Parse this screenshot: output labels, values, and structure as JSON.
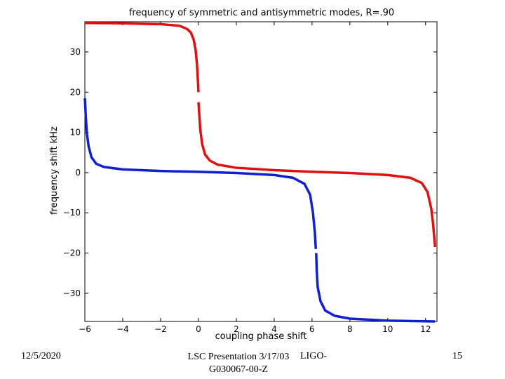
{
  "chart_data": {
    "type": "line",
    "title": "frequency of symmetric and antisymmetric modes, R=.90",
    "xlabel": "coupling phase shift",
    "ylabel": "frequency shift kHz",
    "xlim": [
      -6,
      12.6
    ],
    "ylim": [
      -37,
      37.5
    ],
    "xticks": [
      -6,
      -4,
      -2,
      0,
      2,
      4,
      6,
      8,
      10,
      12
    ],
    "yticks": [
      30,
      20,
      10,
      0,
      -10,
      -20,
      -30
    ],
    "grid": false,
    "series": [
      {
        "color": "#e01010",
        "segments": [
          [
            [
              -6.0,
              37.2
            ],
            [
              -4.0,
              37.1
            ],
            [
              -2.0,
              36.9
            ],
            [
              -1.0,
              36.5
            ],
            [
              -0.6,
              35.7
            ],
            [
              -0.4,
              34.8
            ],
            [
              -0.25,
              33.0
            ],
            [
              -0.15,
              30.5
            ],
            [
              -0.08,
              27.0
            ],
            [
              -0.03,
              23.0
            ],
            [
              0.0,
              20.0
            ]
          ],
          [
            [
              0.0,
              17.5
            ],
            [
              0.05,
              14.0
            ],
            [
              0.1,
              10.5
            ],
            [
              0.2,
              7.0
            ],
            [
              0.35,
              4.5
            ],
            [
              0.6,
              3.0
            ],
            [
              1.0,
              2.0
            ],
            [
              2.0,
              1.2
            ],
            [
              4.0,
              0.6
            ],
            [
              6.0,
              0.2
            ],
            [
              8.0,
              -0.1
            ],
            [
              10.0,
              -0.6
            ],
            [
              11.2,
              -1.3
            ],
            [
              11.8,
              -2.6
            ],
            [
              12.1,
              -4.8
            ],
            [
              12.3,
              -9.0
            ],
            [
              12.4,
              -13.0
            ],
            [
              12.5,
              -18.5
            ]
          ]
        ]
      },
      {
        "color": "#1020d0",
        "segments": [
          [
            [
              -6.0,
              18.5
            ],
            [
              -5.95,
              14.0
            ],
            [
              -5.9,
              10.0
            ],
            [
              -5.8,
              6.5
            ],
            [
              -5.65,
              3.8
            ],
            [
              -5.4,
              2.2
            ],
            [
              -5.0,
              1.4
            ],
            [
              -4.0,
              0.8
            ],
            [
              -2.0,
              0.4
            ],
            [
              0.0,
              0.2
            ],
            [
              2.0,
              -0.1
            ],
            [
              4.0,
              -0.6
            ],
            [
              5.0,
              -1.3
            ],
            [
              5.6,
              -2.8
            ],
            [
              5.9,
              -5.5
            ],
            [
              6.05,
              -10.0
            ],
            [
              6.15,
              -15.0
            ],
            [
              6.2,
              -19.0
            ]
          ],
          [
            [
              6.22,
              -20.0
            ],
            [
              6.25,
              -24.5
            ],
            [
              6.3,
              -28.5
            ],
            [
              6.45,
              -32.0
            ],
            [
              6.7,
              -34.3
            ],
            [
              7.2,
              -35.6
            ],
            [
              8.0,
              -36.3
            ],
            [
              10.0,
              -36.8
            ],
            [
              12.5,
              -37.0
            ]
          ]
        ]
      }
    ]
  },
  "footer": {
    "date": "12/5/2020",
    "presentation": "LSC Presentation 3/17/03",
    "doc_id": "G030067-00-Z",
    "ligo": "LIGO-",
    "page": "15"
  }
}
